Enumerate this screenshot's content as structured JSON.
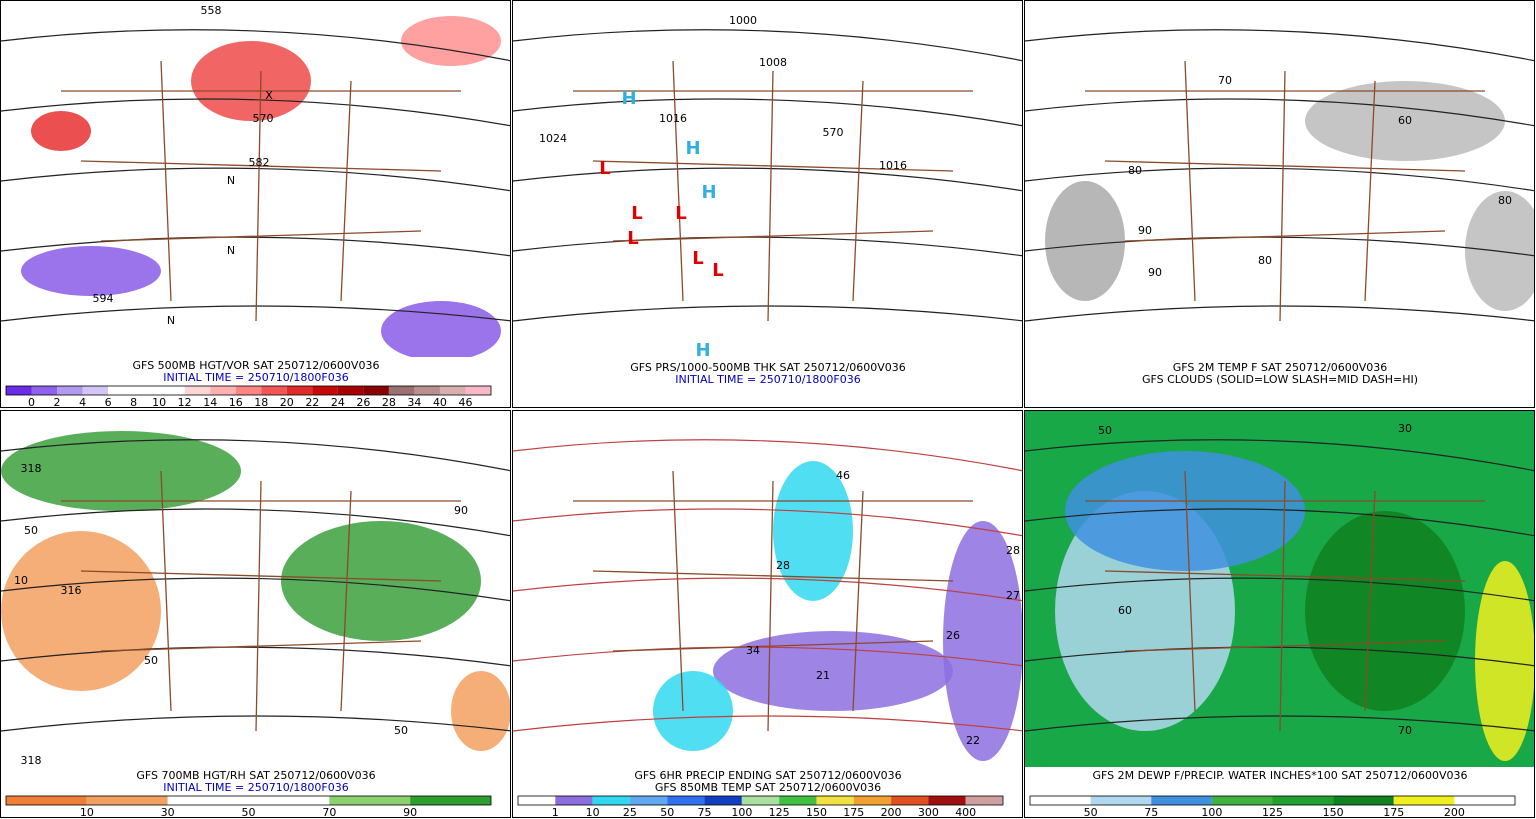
{
  "panels": [
    {
      "caption": [
        "GFS 500MB HGT/VOR SAT 250712/0600V036",
        "INITIAL TIME = 250710/1800F036"
      ],
      "map_labels": [
        "558",
        "570",
        "582",
        "594",
        "N",
        "N",
        "N",
        "X"
      ],
      "colorbar": {
        "colors": [
          "#6a2ce8",
          "#8e60ec",
          "#b09af0",
          "#d2c6f6",
          "#ffffff",
          "#ffffff",
          "#ffffff",
          "#ffd6d6",
          "#ffb0b0",
          "#ff8484",
          "#f25656",
          "#e02a2a",
          "#c80808",
          "#a80000",
          "#880000",
          "#9a7070",
          "#b89090",
          "#d8b0b0",
          "#f8b8c8"
        ],
        "labels": [
          0,
          2,
          4,
          6,
          8,
          10,
          12,
          14,
          16,
          18,
          20,
          22,
          24,
          26,
          28,
          34,
          40,
          46
        ]
      }
    },
    {
      "caption": [
        "GFS PRS/1000-500MB THK SAT 250712/0600V036",
        "INITIAL TIME = 250710/1800F036"
      ],
      "map_labels": [
        "1000",
        "1008",
        "1016",
        "1024",
        "1016",
        "570",
        "L",
        "L",
        "L",
        "L",
        "L",
        "L",
        "H",
        "H",
        "H",
        "H"
      ]
    },
    {
      "caption": [
        "GFS 2M TEMP F SAT 250712/0600V036",
        "GFS CLOUDS (SOLID=LOW SLASH=MID DASH=HI)"
      ],
      "map_labels": [
        "80",
        "90",
        "70",
        "60",
        "80",
        "80",
        "90"
      ]
    },
    {
      "caption": [
        "GFS 700MB HGT/RH SAT 250712/0600V036",
        "INITIAL TIME = 250710/1800F036"
      ],
      "map_labels": [
        "318",
        "50",
        "10",
        "316",
        "50",
        "90",
        "50",
        "318"
      ],
      "colorbar": {
        "colors": [
          "#f08038",
          "#f4a060",
          "#ffffff",
          "#ffffff",
          "#8cd070",
          "#2e9e2e"
        ],
        "labels": [
          10,
          30,
          50,
          70,
          90
        ]
      }
    },
    {
      "caption": [
        "GFS 6HR PRECIP ENDING SAT 250712/0600V036",
        "GFS 850MB TEMP SAT 250712/0600V036"
      ],
      "map_labels": [
        "46",
        "28",
        "34",
        "26",
        "27",
        "22",
        "28",
        "21"
      ],
      "colorbar": {
        "colors": [
          "#ffffff",
          "#8c6ee0",
          "#30d8f0",
          "#60a8f0",
          "#3070f0",
          "#1040c0",
          "#a8e0a0",
          "#40c040",
          "#f0e040",
          "#f0a030",
          "#e05020",
          "#a01010",
          "#d0a0a0"
        ],
        "labels": [
          1,
          10,
          25,
          50,
          75,
          100,
          125,
          150,
          175,
          200,
          300,
          400
        ]
      }
    },
    {
      "caption": [
        "GFS 2M DEWP F/PRECIP. WATER INCHES*100 SAT 250712/0600V036"
      ],
      "map_labels": [
        "50",
        "30",
        "60",
        "70"
      ],
      "colorbar": {
        "colors": [
          "#ffffff",
          "#b0d8f0",
          "#4090e0",
          "#40b040",
          "#20a030",
          "#108020",
          "#f0f020",
          "#ffffff"
        ],
        "labels": [
          50,
          75,
          100,
          125,
          150,
          175,
          200
        ]
      }
    }
  ]
}
